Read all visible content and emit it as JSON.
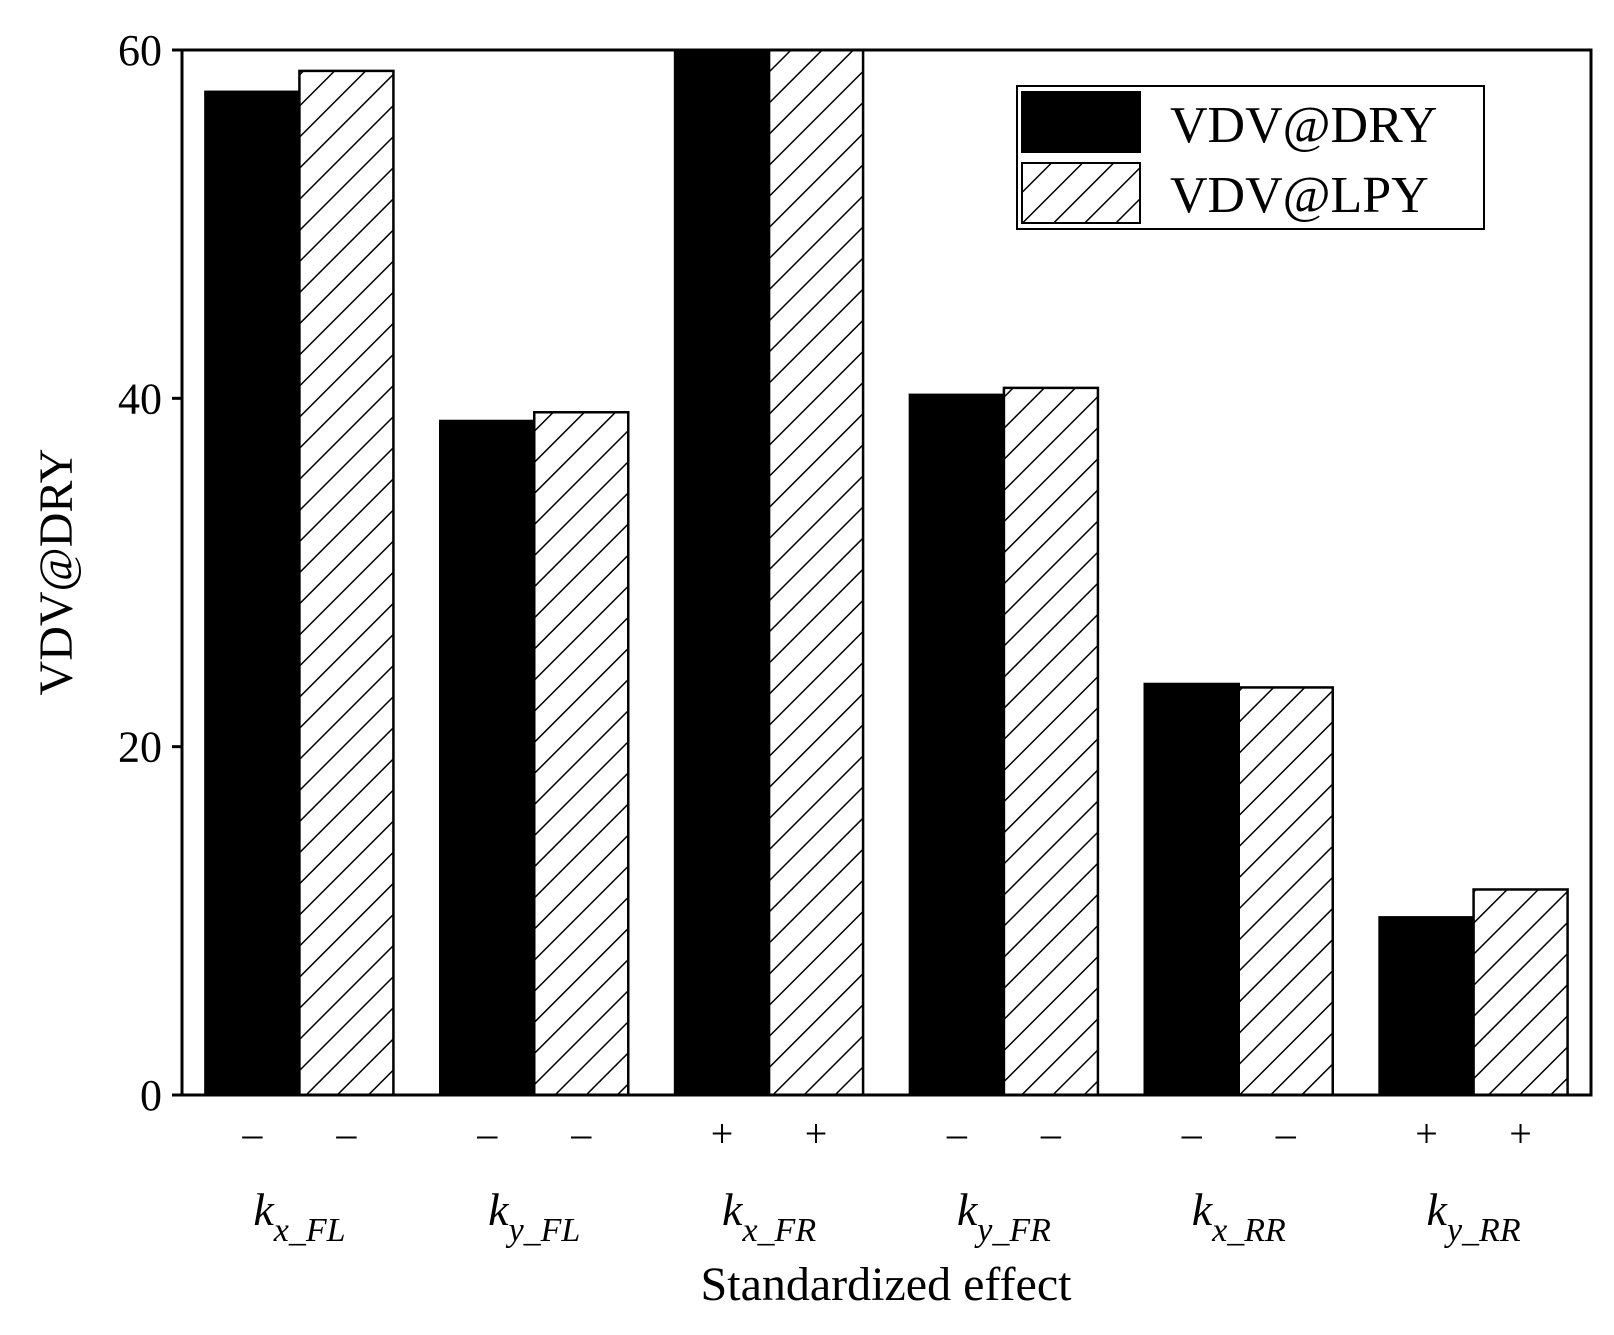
{
  "chart_data": {
    "type": "bar",
    "title": "",
    "xlabel": "Standardized effect",
    "ylabel": "VDV@DRY",
    "ylim": [
      0,
      60
    ],
    "yticks": [
      0,
      20,
      40,
      60
    ],
    "grid": false,
    "legend_position": "top-right",
    "categories": [
      {
        "base": "k",
        "sub": "x_FL"
      },
      {
        "base": "k",
        "sub": "y_FL"
      },
      {
        "base": "k",
        "sub": "x_FR"
      },
      {
        "base": "k",
        "sub": "y_FR"
      },
      {
        "base": "k",
        "sub": "x_RR"
      },
      {
        "base": "k",
        "sub": "y_RR"
      }
    ],
    "series": [
      {
        "name": "VDV@DRY",
        "fill": "solid",
        "color": "#000000",
        "values": [
          57.6,
          38.7,
          60.0,
          40.2,
          23.6,
          10.2
        ],
        "signs": [
          "–",
          "–",
          "+",
          "–",
          "–",
          "+"
        ]
      },
      {
        "name": "VDV@LPY",
        "fill": "hatched",
        "color": "#000000",
        "values": [
          58.8,
          39.2,
          60.0,
          40.6,
          23.4,
          11.8
        ],
        "signs": [
          "–",
          "–",
          "+",
          "–",
          "–",
          "+"
        ]
      }
    ]
  }
}
